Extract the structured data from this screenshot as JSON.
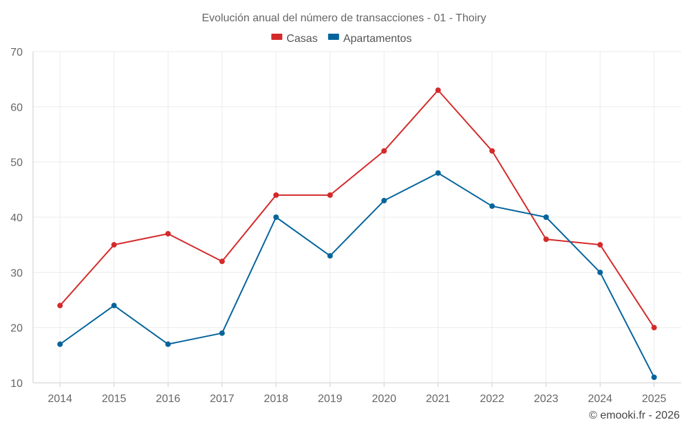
{
  "chart_data": {
    "type": "line",
    "title": "Evolución anual del número de transacciones - 01 - Thoiry",
    "categories": [
      "2014",
      "2015",
      "2016",
      "2017",
      "2018",
      "2019",
      "2020",
      "2021",
      "2022",
      "2023",
      "2024",
      "2025"
    ],
    "series": [
      {
        "name": "Casas",
        "color": "#d42a2a",
        "values": [
          24,
          35,
          37,
          32,
          44,
          44,
          52,
          63,
          52,
          36,
          35,
          20
        ]
      },
      {
        "name": "Apartamentos",
        "color": "#05649c",
        "values": [
          17,
          24,
          17,
          19,
          40,
          33,
          43,
          48,
          42,
          40,
          30,
          11
        ]
      }
    ],
    "ylim": [
      10,
      70
    ],
    "yticks": [
      10,
      20,
      30,
      40,
      50,
      60,
      70
    ],
    "legend_position": "top-center",
    "grid": true,
    "xlabel": "",
    "ylabel": ""
  },
  "credit": "© emooki.fr - 2026"
}
